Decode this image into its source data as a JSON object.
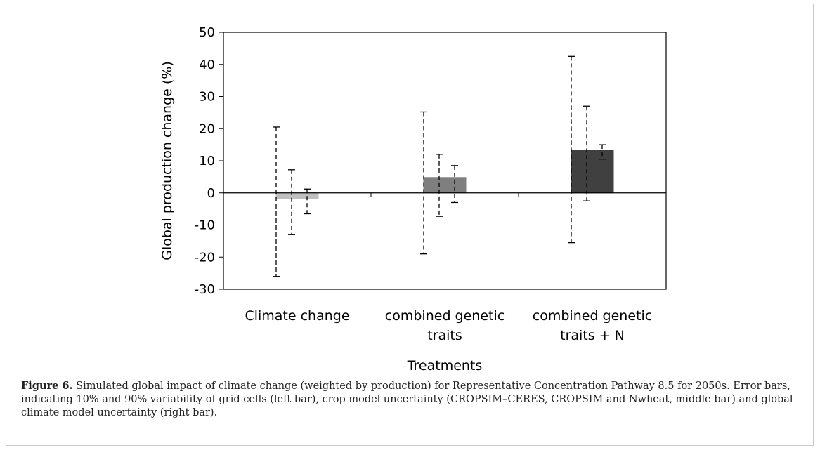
{
  "chart_data": {
    "type": "bar",
    "categories": [
      [
        "Climate change"
      ],
      [
        "combined genetic",
        "traits"
      ],
      [
        "combined genetic",
        "traits + N"
      ]
    ],
    "values": [
      -1.8,
      4.8,
      13.3
    ],
    "colors": [
      "#bfbfbf",
      "#7f7f7f",
      "#404040"
    ],
    "error_bars": [
      [
        {
          "low": -26,
          "high": 20.5
        },
        {
          "low": -13,
          "high": 7.2
        },
        {
          "low": -6.5,
          "high": 1.2
        }
      ],
      [
        {
          "low": -19,
          "high": 25.2
        },
        {
          "low": -7.3,
          "high": 12
        },
        {
          "low": -3,
          "high": 8.5
        }
      ],
      [
        {
          "low": -15.5,
          "high": 42.5
        },
        {
          "low": -2.5,
          "high": 27
        },
        {
          "low": 10.5,
          "high": 15
        }
      ]
    ],
    "ylabel": "Global production change (%)",
    "xlabel": "Treatments",
    "ylim": [
      -30,
      50
    ],
    "yticks": [
      50,
      40,
      30,
      20,
      10,
      0,
      -10,
      -20,
      -30
    ],
    "grid": false,
    "legend": "none"
  },
  "caption": {
    "label": "Figure 6.",
    "text": "Simulated global impact of climate change (weighted by production) for Representative Concentration Pathway 8.5 for 2050s. Error bars, indicating 10% and 90% variability of grid cells (left bar), crop model uncertainty (CROPSIM–CERES, CROPSIM and Nwheat, middle bar) and global climate model uncertainty (right bar)."
  }
}
